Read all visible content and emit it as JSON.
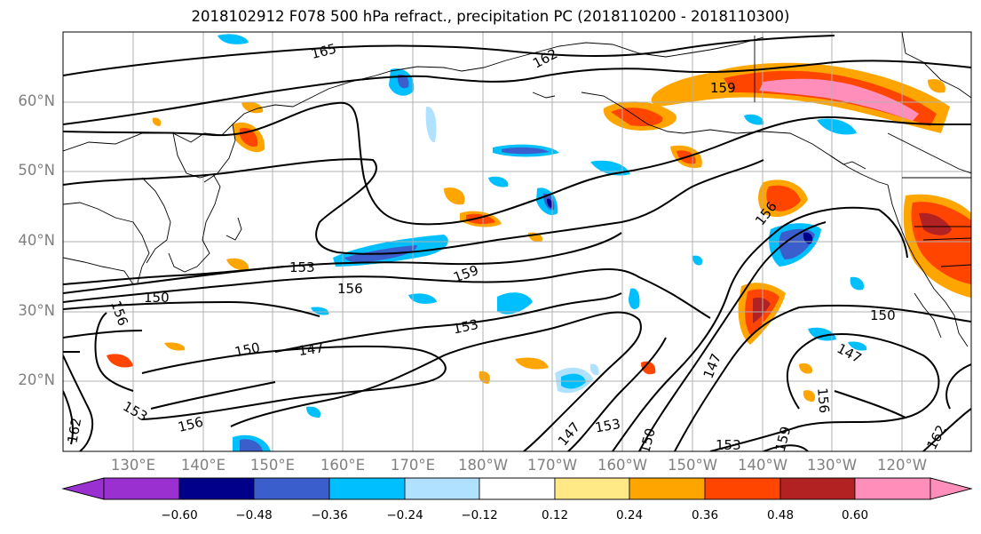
{
  "title": "2018102912 F078 500 hPa refract., precipitation PC (2018110200 - 2018110300)",
  "lat_labels": [
    "60°N",
    "50°N",
    "40°N",
    "30°N",
    "20°N"
  ],
  "lon_labels": [
    "130°E",
    "140°E",
    "150°E",
    "160°E",
    "170°E",
    "180°W",
    "170°W",
    "160°W",
    "150°W",
    "140°W",
    "130°W",
    "120°W"
  ],
  "contour_labels": [
    "165",
    "162",
    "159",
    "156",
    "153",
    "150",
    "156",
    "159",
    "153",
    "150",
    "147",
    "156",
    "153",
    "147",
    "153",
    "150",
    "153",
    "156",
    "147",
    "162",
    "150",
    "147",
    "156",
    "162",
    "159"
  ],
  "colorbar": {
    "ticks": [
      "−0.60",
      "−0.48",
      "−0.36",
      "−0.24",
      "−0.12",
      "0.12",
      "0.24",
      "0.36",
      "0.48",
      "0.60"
    ],
    "colors": [
      "#9b30d0",
      "#00008b",
      "#3a5fcd",
      "#00bfff",
      "#b0e2ff",
      "#ffffff",
      "#ffe885",
      "#ffa500",
      "#ff4500",
      "#b22222",
      "#ff8fba"
    ]
  }
}
